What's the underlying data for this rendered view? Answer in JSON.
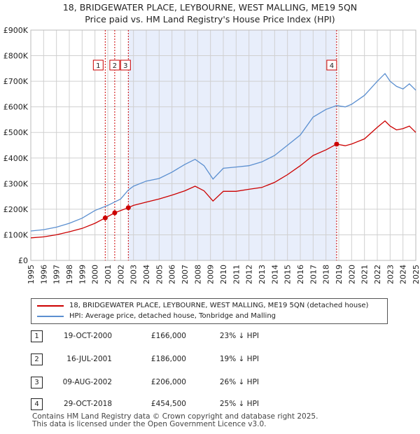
{
  "titles": {
    "line1": "18, BRIDGEWATER PLACE, LEYBOURNE, WEST MALLING, ME19 5QN",
    "line2": "Price paid vs. HM Land Registry's House Price Index (HPI)"
  },
  "colors": {
    "property": "#cc0000",
    "hpi": "#5b8fd0",
    "shade": "#e8eefb",
    "grid": "#d0d0d0",
    "marker_line": "#cc0000"
  },
  "legend": {
    "property_label": "18, BRIDGEWATER PLACE, LEYBOURNE, WEST MALLING, ME19 5QN (detached house)",
    "hpi_label": "HPI: Average price, detached house, Tonbridge and Malling"
  },
  "sales": [
    {
      "num": "1",
      "date": "19-OCT-2000",
      "price": "£166,000",
      "hpi": "23% ↓ HPI"
    },
    {
      "num": "2",
      "date": "16-JUL-2001",
      "price": "£186,000",
      "hpi": "19% ↓ HPI"
    },
    {
      "num": "3",
      "date": "09-AUG-2002",
      "price": "£206,000",
      "hpi": "26% ↓ HPI"
    },
    {
      "num": "4",
      "date": "29-OCT-2018",
      "price": "£454,500",
      "hpi": "25% ↓ HPI"
    }
  ],
  "footer": {
    "line1": "Contains HM Land Registry data © Crown copyright and database right 2025.",
    "line2": "This data is licensed under the Open Government Licence v3.0."
  },
  "chart_data": {
    "type": "line",
    "title": "Price paid vs. HM Land Registry's House Price Index (HPI)",
    "xlabel": "",
    "ylabel": "",
    "xlim": [
      1995,
      2025
    ],
    "ylim": [
      0,
      900000
    ],
    "yticks": [
      0,
      100000,
      200000,
      300000,
      400000,
      500000,
      600000,
      700000,
      800000,
      900000
    ],
    "ytick_labels": [
      "£0",
      "£100K",
      "£200K",
      "£300K",
      "£400K",
      "£500K",
      "£600K",
      "£700K",
      "£800K",
      "£900K"
    ],
    "xticks": [
      "1995",
      "1996",
      "1997",
      "1998",
      "1999",
      "2000",
      "2001",
      "2002",
      "2003",
      "2004",
      "2005",
      "2006",
      "2007",
      "2008",
      "2009",
      "2010",
      "2011",
      "2012",
      "2013",
      "2014",
      "2015",
      "2016",
      "2017",
      "2018",
      "2019",
      "2020",
      "2021",
      "2022",
      "2023",
      "2024",
      "2025"
    ],
    "shaded_range": [
      2002.6,
      2018.83
    ],
    "series": [
      {
        "name": "18, BRIDGEWATER PLACE, LEYBOURNE, WEST MALLING, ME19 5QN (detached house)",
        "x": [
          1995,
          1996,
          1997,
          1998,
          1999,
          2000,
          2000.8,
          2001.54,
          2002.6,
          2003,
          2004,
          2005,
          2006,
          2007,
          2007.8,
          2008.5,
          2009.2,
          2010,
          2011,
          2012,
          2013,
          2014,
          2015,
          2016,
          2017,
          2018,
          2018.83,
          2019.5,
          2020,
          2021,
          2022,
          2022.6,
          2023,
          2023.5,
          2024,
          2024.5,
          2025
        ],
        "y": [
          88000,
          92000,
          100000,
          112000,
          125000,
          145000,
          166000,
          186000,
          206000,
          215000,
          228000,
          240000,
          255000,
          272000,
          290000,
          272000,
          232000,
          270000,
          270000,
          278000,
          285000,
          305000,
          335000,
          370000,
          410000,
          432000,
          454500,
          448000,
          455000,
          475000,
          520000,
          545000,
          525000,
          510000,
          515000,
          525000,
          500000
        ]
      },
      {
        "name": "HPI: Average price, detached house, Tonbridge and Malling",
        "x": [
          1995,
          1996,
          1997,
          1998,
          1999,
          2000,
          2001,
          2002,
          2002.6,
          2003,
          2004,
          2005,
          2006,
          2007,
          2007.8,
          2008.5,
          2009.2,
          2010,
          2011,
          2012,
          2013,
          2014,
          2015,
          2016,
          2017,
          2018,
          2018.83,
          2019.5,
          2020,
          2021,
          2022,
          2022.6,
          2023,
          2023.5,
          2024,
          2024.5,
          2025
        ],
        "y": [
          115000,
          120000,
          130000,
          145000,
          165000,
          195000,
          215000,
          240000,
          275000,
          290000,
          310000,
          320000,
          345000,
          375000,
          395000,
          370000,
          318000,
          360000,
          365000,
          370000,
          385000,
          410000,
          450000,
          490000,
          560000,
          590000,
          605000,
          600000,
          610000,
          645000,
          700000,
          730000,
          700000,
          680000,
          670000,
          690000,
          665000
        ]
      }
    ],
    "markers": [
      {
        "label": "1",
        "x": 2000.8,
        "y": 166000
      },
      {
        "label": "2",
        "x": 2001.54,
        "y": 186000
      },
      {
        "label": "3",
        "x": 2002.6,
        "y": 206000
      },
      {
        "label": "4",
        "x": 2018.83,
        "y": 454500
      }
    ],
    "grid": true,
    "legend_position": "bottom"
  }
}
